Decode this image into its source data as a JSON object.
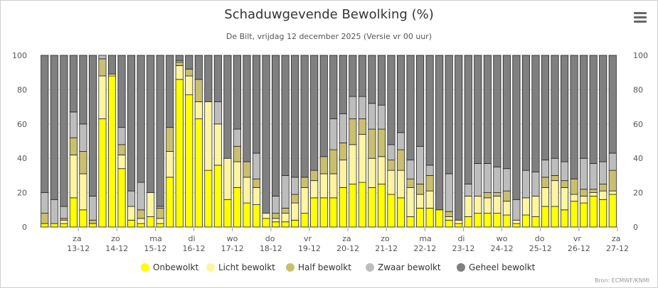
{
  "title": "Schaduwgevende Bewolking (%)",
  "subtitle": "De Bilt, vrijdag 12 december 2025 (Versie vr 00 uur)",
  "source": "Bron: ECMWF/KNMI",
  "menu_icon": "hamburger-menu-icon",
  "colors": {
    "Onbewolkt": "#ffff00",
    "Licht bewolkt": "#fff5a0",
    "Half bewolkt": "#c9bf6f",
    "Zwaar bewolkt": "#bdbdbd",
    "Geheel bewolkt": "#808080",
    "grid": "#e0e0e0"
  },
  "chart_data": {
    "type": "bar",
    "stacked": true,
    "title": "Schaduwgevende Bewolking (%)",
    "subtitle": "De Bilt, vrijdag 12 december 2025 (Versie vr 00 uur)",
    "ylim": [
      0,
      100
    ],
    "y_ticks": [
      0,
      20,
      40,
      60,
      80,
      100
    ],
    "grid": true,
    "legend_position": "bottom",
    "x_ticks": [
      {
        "day": "za",
        "date": "13-12",
        "index": 4
      },
      {
        "day": "zo",
        "date": "14-12",
        "index": 8
      },
      {
        "day": "ma",
        "date": "15-12",
        "index": 12
      },
      {
        "day": "di",
        "date": "16-12",
        "index": 16
      },
      {
        "day": "wo",
        "date": "17-12",
        "index": 20
      },
      {
        "day": "do",
        "date": "18-12",
        "index": 24
      },
      {
        "day": "vr",
        "date": "19-12",
        "index": 28
      },
      {
        "day": "za",
        "date": "20-12",
        "index": 32
      },
      {
        "day": "zo",
        "date": "21-12",
        "index": 36
      },
      {
        "day": "ma",
        "date": "22-12",
        "index": 40
      },
      {
        "day": "di",
        "date": "23-12",
        "index": 44
      },
      {
        "day": "wo",
        "date": "24-12",
        "index": 48
      },
      {
        "day": "do",
        "date": "25-12",
        "index": 52
      },
      {
        "day": "vr",
        "date": "26-12",
        "index": 56
      },
      {
        "day": "za",
        "date": "27-12",
        "index": 60
      }
    ],
    "series": [
      {
        "name": "Onbewolkt",
        "values": [
          2,
          2,
          2,
          17,
          10,
          2,
          63,
          88,
          34,
          4,
          2,
          6,
          2,
          29,
          86,
          77,
          63,
          33,
          36,
          16,
          23,
          14,
          13,
          5,
          3,
          3,
          4,
          8,
          17,
          17,
          17,
          23,
          25,
          26,
          23,
          25,
          19,
          17,
          6,
          11,
          11,
          10,
          4,
          2,
          6,
          8,
          8,
          8,
          7,
          2,
          7,
          6,
          12,
          12,
          10,
          15,
          14,
          18,
          16,
          19
        ]
      },
      {
        "name": "Licht bewolkt",
        "values": [
          0,
          0,
          2,
          25,
          21,
          0,
          25,
          1,
          8,
          8,
          3,
          14,
          3,
          15,
          8,
          11,
          10,
          40,
          24,
          24,
          15,
          15,
          10,
          3,
          2,
          5,
          10,
          15,
          10,
          14,
          14,
          16,
          23,
          28,
          17,
          16,
          14,
          16,
          17,
          8,
          10,
          0,
          2,
          2,
          12,
          10,
          9,
          10,
          8,
          2,
          10,
          12,
          11,
          15,
          13,
          4,
          4,
          2,
          5,
          2
        ]
      },
      {
        "name": "Half bewolkt",
        "values": [
          6,
          0,
          1,
          10,
          13,
          2,
          10,
          0,
          6,
          0,
          5,
          0,
          6,
          14,
          2,
          4,
          13,
          0,
          0,
          0,
          9,
          9,
          5,
          0,
          3,
          3,
          5,
          6,
          6,
          10,
          14,
          10,
          15,
          9,
          17,
          16,
          6,
          12,
          5,
          6,
          9,
          0,
          3,
          0,
          0,
          0,
          3,
          2,
          6,
          0,
          0,
          0,
          6,
          3,
          4,
          9,
          4,
          2,
          4,
          12
        ]
      },
      {
        "name": "Zwaar bewolkt",
        "values": [
          12,
          14,
          7,
          15,
          16,
          14,
          2,
          0,
          10,
          9,
          16,
          0,
          1,
          0,
          1,
          0,
          0,
          0,
          13,
          0,
          10,
          0,
          15,
          0,
          10,
          19,
          10,
          0,
          0,
          0,
          18,
          17,
          13,
          13,
          15,
          14,
          9,
          10,
          11,
          22,
          6,
          0,
          22,
          0,
          7,
          19,
          17,
          15,
          13,
          12,
          16,
          14,
          10,
          10,
          11,
          0,
          18,
          15,
          13,
          10
        ]
      },
      {
        "name": "Geheel bewolkt",
        "values": [
          80,
          84,
          88,
          33,
          40,
          82,
          0,
          11,
          42,
          79,
          74,
          80,
          88,
          42,
          3,
          8,
          14,
          27,
          27,
          60,
          43,
          62,
          57,
          92,
          82,
          70,
          71,
          71,
          67,
          59,
          37,
          34,
          24,
          24,
          28,
          29,
          52,
          45,
          61,
          53,
          64,
          90,
          69,
          96,
          75,
          63,
          63,
          65,
          66,
          84,
          67,
          68,
          61,
          60,
          62,
          72,
          60,
          63,
          62,
          57
        ]
      }
    ]
  }
}
